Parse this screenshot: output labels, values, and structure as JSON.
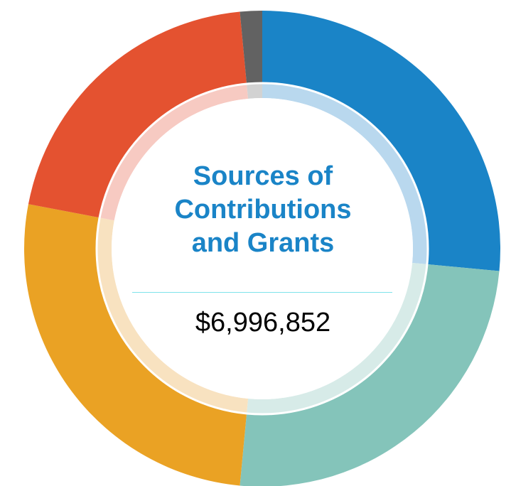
{
  "chart_data": {
    "type": "pie",
    "title": "Sources of\nContributions\nand Grants",
    "total": "$6,996,852",
    "series": [
      {
        "value": 26.5,
        "color": "#1a84c7",
        "light_color": "#b9d8ee"
      },
      {
        "value": 25.0,
        "color": "#84c4ba",
        "light_color": "#d7ebe8"
      },
      {
        "value": 26.5,
        "color": "#eaa224",
        "light_color": "#f8e2c0"
      },
      {
        "value": 20.5,
        "color": "#e45230",
        "light_color": "#f7cac2"
      },
      {
        "value": 1.5,
        "color": "#626262",
        "light_color": "#d2d2d2"
      }
    ],
    "divider_color": "#7fe3ea"
  }
}
